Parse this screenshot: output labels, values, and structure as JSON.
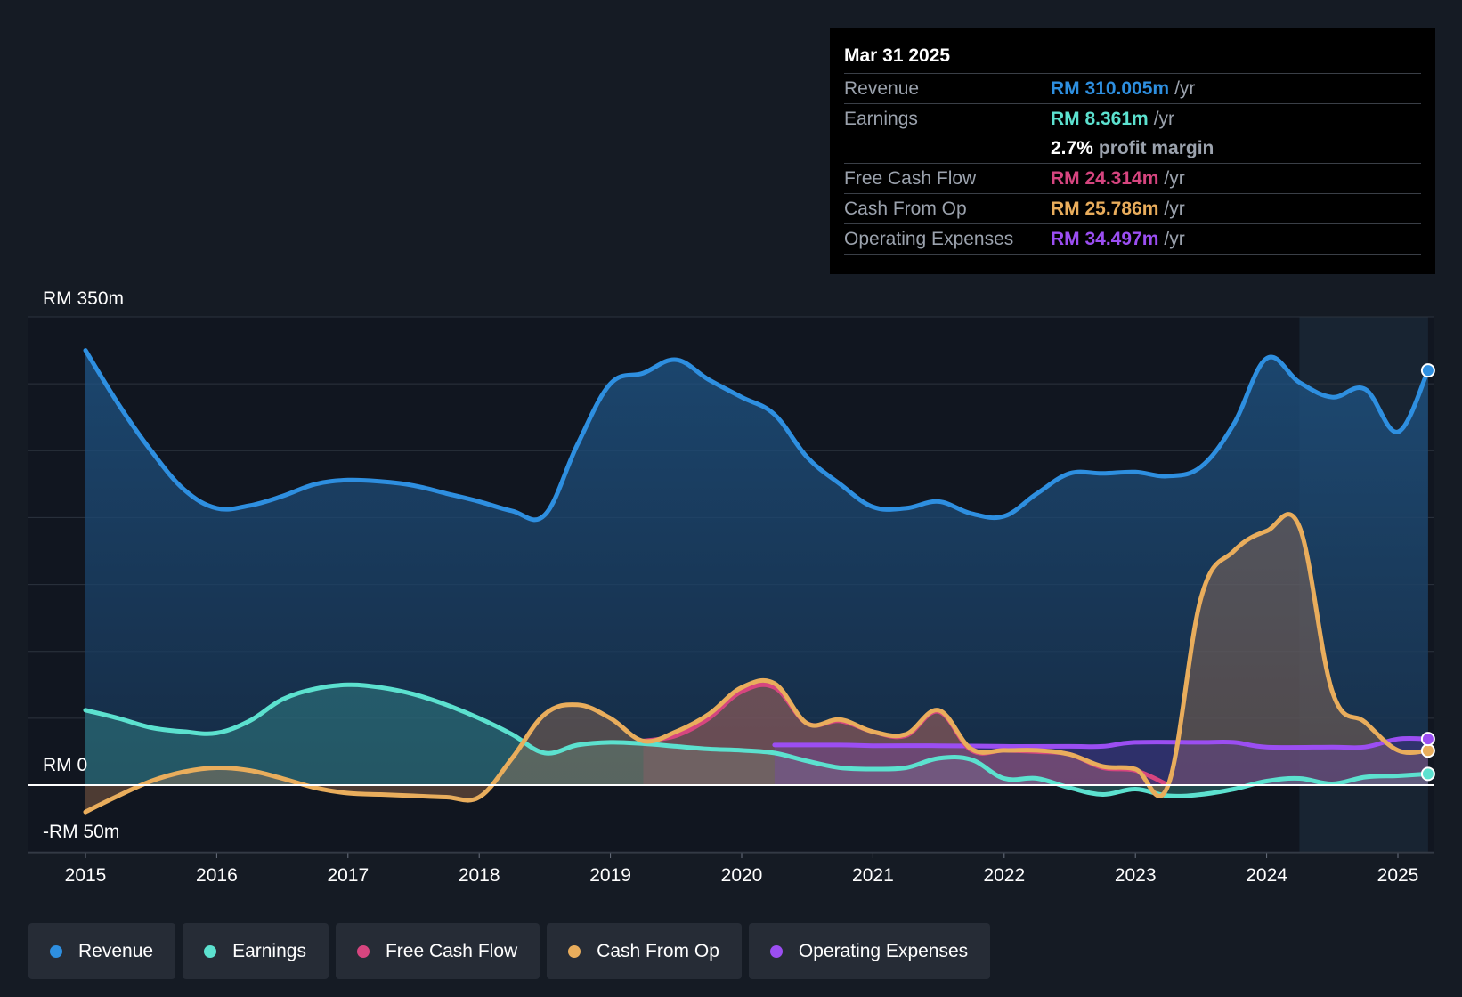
{
  "tooltip": {
    "date": "Mar 31 2025",
    "rows": [
      {
        "label": "Revenue",
        "value": "RM 310.005m",
        "unit": "/yr",
        "color": "#2e8fe0"
      },
      {
        "label": "Earnings",
        "value": "RM 8.361m",
        "unit": "/yr",
        "color": "#5ce1cf"
      },
      {
        "label": "",
        "value": "2.7%",
        "unit": "profit margin",
        "color": "#ffffff"
      },
      {
        "label": "Free Cash Flow",
        "value": "RM 24.314m",
        "unit": "/yr",
        "color": "#d6457f"
      },
      {
        "label": "Cash From Op",
        "value": "RM 25.786m",
        "unit": "/yr",
        "color": "#e9ad5c"
      },
      {
        "label": "Operating Expenses",
        "value": "RM 34.497m",
        "unit": "/yr",
        "color": "#9b4ef2"
      }
    ]
  },
  "legend": [
    {
      "label": "Revenue",
      "color": "#2e8fe0"
    },
    {
      "label": "Earnings",
      "color": "#5ce1cf"
    },
    {
      "label": "Free Cash Flow",
      "color": "#d6457f"
    },
    {
      "label": "Cash From Op",
      "color": "#e9ad5c"
    },
    {
      "label": "Operating Expenses",
      "color": "#9b4ef2"
    }
  ],
  "chart_data": {
    "type": "area",
    "title": "",
    "xlabel": "",
    "ylabel": "",
    "ylim": [
      -50,
      350
    ],
    "y_tick_labels": [
      "RM 350m",
      "RM 0",
      "-RM 50m"
    ],
    "y_tick_values": [
      350,
      0,
      -50
    ],
    "x_ticks": [
      2015,
      2016,
      2017,
      2018,
      2019,
      2020,
      2021,
      2022,
      2023,
      2024,
      2025
    ],
    "x_tick_labels": [
      "2015",
      "2016",
      "2017",
      "2018",
      "2019",
      "2020",
      "2021",
      "2022",
      "2023",
      "2024",
      "2025"
    ],
    "xlim": [
      2014.57,
      2025.23
    ],
    "forecast_start": 2024.25,
    "series": [
      {
        "name": "Revenue",
        "color": "#2e8fe0",
        "points": [
          [
            2015.0,
            325
          ],
          [
            2015.25,
            285
          ],
          [
            2015.5,
            250
          ],
          [
            2015.75,
            221
          ],
          [
            2016.0,
            207
          ],
          [
            2016.25,
            209
          ],
          [
            2016.5,
            216
          ],
          [
            2016.75,
            225
          ],
          [
            2017.0,
            228
          ],
          [
            2017.25,
            227
          ],
          [
            2017.5,
            224
          ],
          [
            2017.75,
            218
          ],
          [
            2018.0,
            212
          ],
          [
            2018.25,
            205
          ],
          [
            2018.5,
            202
          ],
          [
            2018.75,
            255
          ],
          [
            2019.0,
            300
          ],
          [
            2019.25,
            308
          ],
          [
            2019.5,
            318
          ],
          [
            2019.75,
            303
          ],
          [
            2020.0,
            290
          ],
          [
            2020.25,
            277
          ],
          [
            2020.5,
            245
          ],
          [
            2020.75,
            225
          ],
          [
            2021.0,
            208
          ],
          [
            2021.25,
            207
          ],
          [
            2021.5,
            212
          ],
          [
            2021.75,
            203
          ],
          [
            2022.0,
            201
          ],
          [
            2022.25,
            218
          ],
          [
            2022.5,
            233
          ],
          [
            2022.75,
            233
          ],
          [
            2023.0,
            234
          ],
          [
            2023.25,
            231
          ],
          [
            2023.5,
            238
          ],
          [
            2023.75,
            270
          ],
          [
            2024.0,
            319
          ],
          [
            2024.25,
            301
          ],
          [
            2024.5,
            290
          ],
          [
            2024.75,
            296
          ],
          [
            2025.0,
            264
          ],
          [
            2025.23,
            310
          ]
        ]
      },
      {
        "name": "Earnings",
        "color": "#5ce1cf",
        "points": [
          [
            2015.0,
            56
          ],
          [
            2015.25,
            50
          ],
          [
            2015.5,
            43
          ],
          [
            2015.75,
            40
          ],
          [
            2016.0,
            39
          ],
          [
            2016.25,
            48
          ],
          [
            2016.5,
            64
          ],
          [
            2016.75,
            72
          ],
          [
            2017.0,
            75
          ],
          [
            2017.25,
            73
          ],
          [
            2017.5,
            68
          ],
          [
            2017.75,
            60
          ],
          [
            2018.0,
            50
          ],
          [
            2018.25,
            38
          ],
          [
            2018.5,
            24
          ],
          [
            2018.75,
            30
          ],
          [
            2019.0,
            32
          ],
          [
            2019.25,
            31
          ],
          [
            2019.5,
            29
          ],
          [
            2019.75,
            27
          ],
          [
            2020.0,
            26
          ],
          [
            2020.25,
            24
          ],
          [
            2020.5,
            18
          ],
          [
            2020.75,
            13
          ],
          [
            2021.0,
            12
          ],
          [
            2021.25,
            13
          ],
          [
            2021.5,
            20
          ],
          [
            2021.75,
            19
          ],
          [
            2022.0,
            5
          ],
          [
            2022.25,
            5
          ],
          [
            2022.5,
            -2
          ],
          [
            2022.75,
            -7
          ],
          [
            2023.0,
            -3
          ],
          [
            2023.25,
            -8
          ],
          [
            2023.5,
            -7
          ],
          [
            2023.75,
            -3
          ],
          [
            2024.0,
            3
          ],
          [
            2024.25,
            5
          ],
          [
            2024.5,
            1
          ],
          [
            2024.75,
            6
          ],
          [
            2025.0,
            7
          ],
          [
            2025.23,
            8.4
          ]
        ]
      },
      {
        "name": "Free Cash Flow",
        "color": "#d6457f",
        "points": [
          [
            2019.25,
            33
          ],
          [
            2019.5,
            37
          ],
          [
            2019.75,
            50
          ],
          [
            2020.0,
            70
          ],
          [
            2020.25,
            73
          ],
          [
            2020.5,
            46
          ],
          [
            2020.75,
            48
          ],
          [
            2021.0,
            40
          ],
          [
            2021.25,
            37
          ],
          [
            2021.5,
            55
          ],
          [
            2021.75,
            26
          ],
          [
            2022.0,
            26
          ],
          [
            2022.25,
            25
          ],
          [
            2022.5,
            23
          ],
          [
            2022.75,
            13
          ],
          [
            2023.0,
            11
          ],
          [
            2023.25,
            0
          ]
        ]
      },
      {
        "name": "Cash From Op",
        "color": "#e9ad5c",
        "points": [
          [
            2015.0,
            -20
          ],
          [
            2015.25,
            -8
          ],
          [
            2015.5,
            3
          ],
          [
            2015.75,
            10
          ],
          [
            2016.0,
            13
          ],
          [
            2016.25,
            11
          ],
          [
            2016.5,
            5
          ],
          [
            2016.75,
            -2
          ],
          [
            2017.0,
            -6
          ],
          [
            2017.25,
            -7
          ],
          [
            2017.5,
            -8
          ],
          [
            2017.75,
            -9
          ],
          [
            2018.0,
            -9
          ],
          [
            2018.25,
            20
          ],
          [
            2018.5,
            53
          ],
          [
            2018.75,
            60
          ],
          [
            2019.0,
            50
          ],
          [
            2019.25,
            33
          ],
          [
            2019.5,
            40
          ],
          [
            2019.75,
            53
          ],
          [
            2020.0,
            73
          ],
          [
            2020.25,
            76
          ],
          [
            2020.5,
            46
          ],
          [
            2020.75,
            49
          ],
          [
            2021.0,
            40
          ],
          [
            2021.25,
            38
          ],
          [
            2021.5,
            56
          ],
          [
            2021.75,
            27
          ],
          [
            2022.0,
            26
          ],
          [
            2022.25,
            26
          ],
          [
            2022.5,
            23
          ],
          [
            2022.75,
            14
          ],
          [
            2023.0,
            12
          ],
          [
            2023.25,
            0
          ],
          [
            2023.5,
            140
          ],
          [
            2023.75,
            175
          ],
          [
            2024.0,
            190
          ],
          [
            2024.25,
            193
          ],
          [
            2024.5,
            70
          ],
          [
            2024.75,
            47
          ],
          [
            2025.0,
            26
          ],
          [
            2025.23,
            25.8
          ]
        ]
      },
      {
        "name": "Operating Expenses",
        "color": "#9b4ef2",
        "points": [
          [
            2020.25,
            30
          ],
          [
            2020.75,
            30
          ],
          [
            2021.0,
            29.5
          ],
          [
            2021.5,
            29.5
          ],
          [
            2022.0,
            29
          ],
          [
            2022.5,
            29
          ],
          [
            2022.75,
            29
          ],
          [
            2023.0,
            32
          ],
          [
            2023.5,
            32
          ],
          [
            2023.75,
            32
          ],
          [
            2024.0,
            28.5
          ],
          [
            2024.5,
            28.5
          ],
          [
            2024.75,
            28.5
          ],
          [
            2025.0,
            34.5
          ],
          [
            2025.23,
            34.5
          ]
        ]
      }
    ]
  }
}
